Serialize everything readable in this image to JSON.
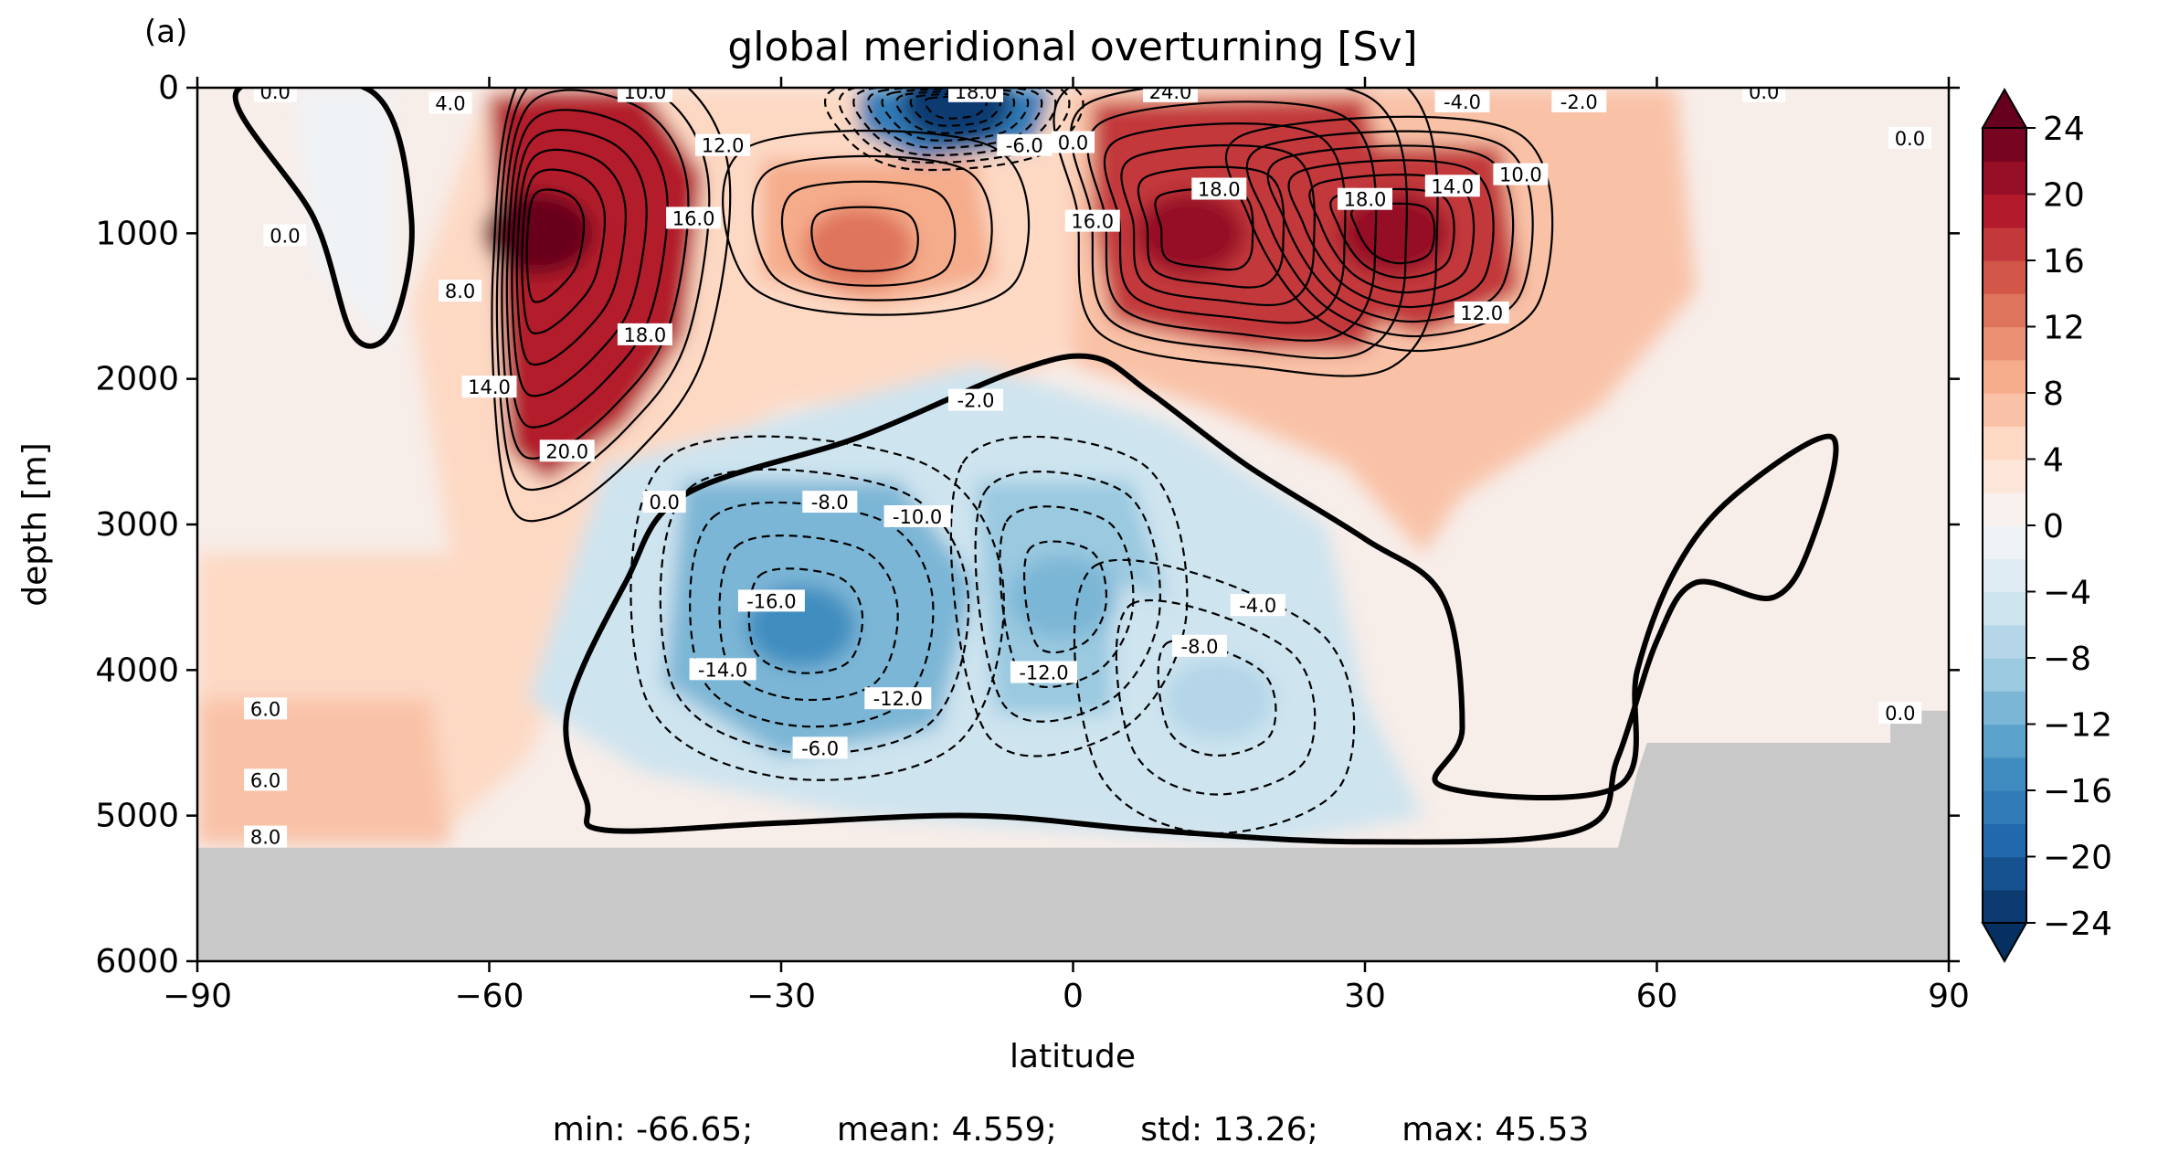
{
  "figure": {
    "panel_label": "(a)",
    "stats_line": "min: -66.65;        mean: 4.559;        std: 13.26;        max: 45.53"
  },
  "chart_data": {
    "type": "heatmap",
    "subtype": "filled-contour",
    "title": "global meridional overturning [Sv]",
    "xlabel": "latitude",
    "ylabel": "depth [m]",
    "xlim": [
      -90,
      90
    ],
    "ylim": [
      6000,
      0
    ],
    "y_inverted": true,
    "x_ticks": [
      -90,
      -60,
      -30,
      0,
      30,
      60,
      90
    ],
    "x_tick_labels": [
      "−90",
      "−60",
      "−30",
      "0",
      "30",
      "60",
      "90"
    ],
    "y_ticks": [
      0,
      1000,
      2000,
      3000,
      4000,
      5000,
      6000
    ],
    "y_tick_labels": [
      "0",
      "1000",
      "2000",
      "3000",
      "4000",
      "5000",
      "6000"
    ],
    "colormap": "RdBu_r",
    "colorbar": {
      "min": -24,
      "max": 24,
      "step": 2,
      "extend": "both",
      "ticks": [
        24,
        20,
        16,
        12,
        8,
        4,
        0,
        -4,
        -8,
        -12,
        -16,
        -20,
        -24
      ],
      "tick_labels": [
        "24",
        "20",
        "16",
        "12",
        "8",
        "4",
        "0",
        "−4",
        "−8",
        "−12",
        "−16",
        "−20",
        "−24"
      ]
    },
    "land_color": "#c8c8c8",
    "stats": {
      "min": -66.65,
      "mean": 4.559,
      "std": 13.26,
      "max": 45.53
    },
    "features": [
      {
        "name": "southern-ocean-deacon-cell",
        "lat": -55,
        "depth": 1000,
        "value": 24
      },
      {
        "name": "nadw-cell-mid",
        "lat": 12,
        "depth": 1000,
        "value": 20
      },
      {
        "name": "nadw-cell-north",
        "lat": 33,
        "depth": 1000,
        "value": 20
      },
      {
        "name": "tropical-cell",
        "lat": -22,
        "depth": 1100,
        "value": 12
      },
      {
        "name": "abyssal-cell",
        "lat": -28,
        "depth": 3700,
        "value": -16
      },
      {
        "name": "abyssal-cell-east",
        "lat": -1,
        "depth": 3500,
        "value": -12
      },
      {
        "name": "abyssal-cell-north",
        "lat": 15,
        "depth": 4200,
        "value": -8
      },
      {
        "name": "surface-equatorial-cell",
        "lat": -12,
        "depth": 100,
        "value": -24
      }
    ],
    "contour_labels": [
      {
        "text": "0.0",
        "lat": -82,
        "depth": 30
      },
      {
        "text": "6.0",
        "lat": -83,
        "depth": 4270
      },
      {
        "text": "6.0",
        "lat": -83,
        "depth": 4760
      },
      {
        "text": "8.0",
        "lat": -83,
        "depth": 5150
      },
      {
        "text": "0.0",
        "lat": -81,
        "depth": 1020
      },
      {
        "text": "4.0",
        "lat": -64,
        "depth": 110
      },
      {
        "text": "8.0",
        "lat": -63,
        "depth": 1400
      },
      {
        "text": "14.0",
        "lat": -60,
        "depth": 2060
      },
      {
        "text": "18.0",
        "lat": -44,
        "depth": 1700
      },
      {
        "text": "20.0",
        "lat": -52,
        "depth": 2500
      },
      {
        "text": "16.0",
        "lat": -39,
        "depth": 900
      },
      {
        "text": "12.0",
        "lat": -36,
        "depth": 400
      },
      {
        "text": "10.0",
        "lat": -44,
        "depth": 30
      },
      {
        "text": "18.0",
        "lat": -10,
        "depth": 30
      },
      {
        "text": "-6.0",
        "lat": -5,
        "depth": 400
      },
      {
        "text": "0.0",
        "lat": 0,
        "depth": 380
      },
      {
        "text": "24.0",
        "lat": 10,
        "depth": 30
      },
      {
        "text": "16.0",
        "lat": 2,
        "depth": 920
      },
      {
        "text": "18.0",
        "lat": 15,
        "depth": 700
      },
      {
        "text": "18.0",
        "lat": 30,
        "depth": 770
      },
      {
        "text": "14.0",
        "lat": 39,
        "depth": 680
      },
      {
        "text": "10.0",
        "lat": 46,
        "depth": 600
      },
      {
        "text": "12.0",
        "lat": 42,
        "depth": 1550
      },
      {
        "text": "-4.0",
        "lat": 40,
        "depth": 100
      },
      {
        "text": "-2.0",
        "lat": 52,
        "depth": 100
      },
      {
        "text": "0.0",
        "lat": 71,
        "depth": 30
      },
      {
        "text": "0.0",
        "lat": 86,
        "depth": 350
      },
      {
        "text": "-2.0",
        "lat": -10,
        "depth": 2150
      },
      {
        "text": "-8.0",
        "lat": -25,
        "depth": 2850
      },
      {
        "text": "-10.0",
        "lat": -16,
        "depth": 2950
      },
      {
        "text": "0.0",
        "lat": -42,
        "depth": 2850
      },
      {
        "text": "-16.0",
        "lat": -31,
        "depth": 3530
      },
      {
        "text": "-14.0",
        "lat": -36,
        "depth": 4000
      },
      {
        "text": "-12.0",
        "lat": -18,
        "depth": 4200
      },
      {
        "text": "-12.0",
        "lat": -3,
        "depth": 4020
      },
      {
        "text": "-6.0",
        "lat": -26,
        "depth": 4540
      },
      {
        "text": "-8.0",
        "lat": 13,
        "depth": 3840
      },
      {
        "text": "-4.0",
        "lat": 19,
        "depth": 3560
      },
      {
        "text": "0.0",
        "lat": 85,
        "depth": 4300
      }
    ]
  }
}
